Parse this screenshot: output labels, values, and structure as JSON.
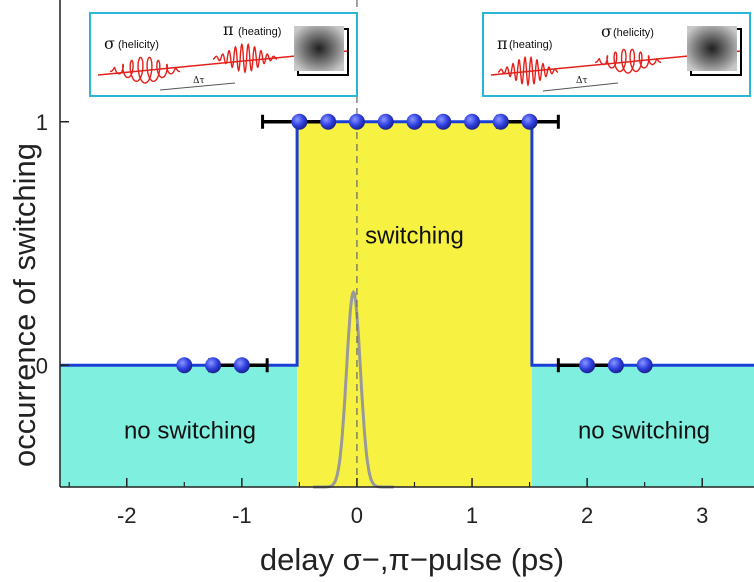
{
  "chart_data": {
    "type": "scatter",
    "title": "",
    "xlabel": "delay σ−,π−pulse (ps)",
    "ylabel": "occurrence of switching",
    "xlim": [
      -2.58,
      3.45
    ],
    "ylim": [
      -0.5,
      1.5
    ],
    "x_ticks": [
      -2,
      -1,
      0,
      1,
      2,
      3
    ],
    "x_tick_labels": [
      "-2",
      "-1",
      "0",
      "1",
      "2",
      "3"
    ],
    "y_ticks": [
      0,
      1
    ],
    "y_tick_labels": [
      "0",
      "1"
    ],
    "grid": false,
    "colors": {
      "switching_region": "#f7f242",
      "no_switching_region": "#7ff0e0",
      "step_line": "#1a3fd6",
      "points": "#2f3fe0",
      "error_bars": "#000000",
      "pulse_curve": "#999999",
      "inset_border": "#2ab6d6",
      "pulse_wave": "#e3201b"
    },
    "regions": [
      {
        "label": "no switching",
        "x_range": [
          -2.58,
          -0.52
        ]
      },
      {
        "label": "switching",
        "x_range": [
          -0.52,
          1.52
        ]
      },
      {
        "label": "no switching",
        "x_range": [
          1.52,
          3.45
        ]
      }
    ],
    "step_line": {
      "x": [
        -2.58,
        -0.52,
        -0.52,
        1.52,
        1.52,
        3.45
      ],
      "y": [
        0,
        0,
        1,
        1,
        0,
        0
      ]
    },
    "series": [
      {
        "x": [
          -1.5,
          -1.25,
          -1.0,
          -0.5,
          -0.25,
          0,
          0.25,
          0.5,
          0.75,
          1.0,
          1.25,
          1.5,
          2.0,
          2.25,
          2.5
        ],
        "y": [
          0,
          0,
          0,
          1,
          1,
          1,
          1,
          1,
          1,
          1,
          1,
          1,
          0,
          0,
          0
        ]
      }
    ],
    "error_bars": [
      {
        "x": [
          -1.28,
          -0.78
        ],
        "y": 0
      },
      {
        "x": [
          -0.82,
          -0.26
        ],
        "y": 1
      },
      {
        "x": [
          1.22,
          1.75
        ],
        "y": 1
      },
      {
        "x": [
          1.75,
          2.28
        ],
        "y": 0
      }
    ],
    "pulse_curve": {
      "center": -0.03,
      "width": 0.06,
      "peak": 0.3,
      "baseline": -0.5
    },
    "dashed_line_x": 0,
    "insets": [
      {
        "position": "top-left",
        "labels": {
          "sigma": "σ",
          "sigma_text": "(helicity)",
          "pi": "π",
          "pi_text": "(heating)",
          "delta": "Δτ"
        },
        "order": [
          "σ",
          "π"
        ]
      },
      {
        "position": "top-right",
        "labels": {
          "pi": "π",
          "pi_text": "(heating)",
          "sigma": "σ",
          "sigma_text": "(helicity)",
          "delta": "Δτ"
        },
        "order": [
          "π",
          "σ"
        ]
      }
    ]
  }
}
